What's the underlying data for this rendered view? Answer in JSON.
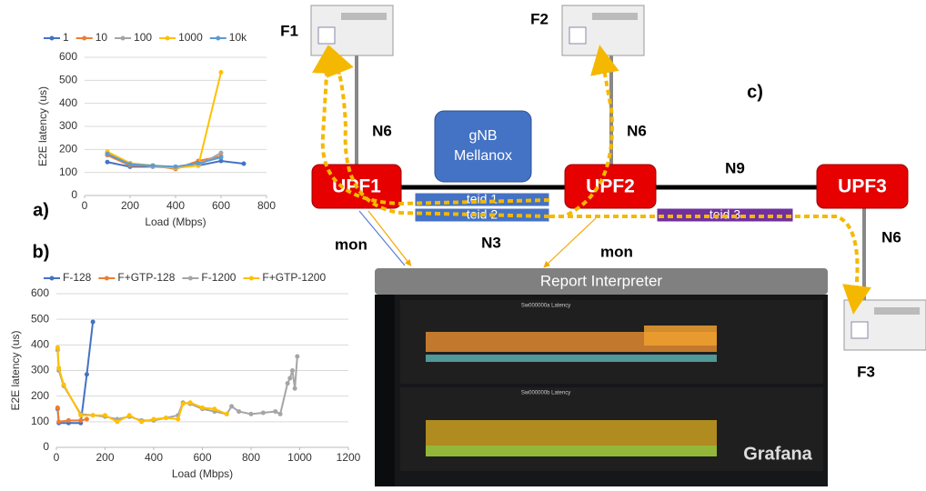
{
  "chart_data": [
    {
      "type": "line",
      "label": "a)",
      "xlabel": "Load (Mbps)",
      "ylabel": "E2E latency (us)",
      "xlim": [
        0,
        800
      ],
      "xticks": [
        0,
        200,
        400,
        600,
        800
      ],
      "ylim": [
        0,
        600
      ],
      "yticks": [
        0,
        100,
        200,
        300,
        400,
        500,
        600
      ],
      "grid": true,
      "legend": "top",
      "series": [
        {
          "name": "1",
          "color": "#4472c4",
          "x": [
            100,
            200,
            300,
            400,
            500,
            600,
            700
          ],
          "values": [
            145,
            125,
            125,
            125,
            130,
            150,
            138
          ]
        },
        {
          "name": "10",
          "color": "#ed7d31",
          "x": [
            100,
            200,
            300,
            400,
            500,
            600
          ],
          "values": [
            175,
            130,
            130,
            115,
            150,
            170
          ]
        },
        {
          "name": "100",
          "color": "#a5a5a5",
          "x": [
            100,
            200,
            300,
            400,
            500,
            600
          ],
          "values": [
            185,
            140,
            125,
            120,
            130,
            185
          ]
        },
        {
          "name": "1000",
          "color": "#ffc000",
          "x": [
            100,
            200,
            300,
            400,
            500,
            600
          ],
          "values": [
            190,
            140,
            130,
            120,
            130,
            535
          ]
        },
        {
          "name": "10k",
          "color": "#5b9bd5",
          "x": [
            100,
            200,
            300,
            400,
            500,
            600
          ],
          "values": [
            180,
            135,
            130,
            125,
            140,
            165
          ]
        }
      ]
    },
    {
      "type": "line",
      "label": "b)",
      "xlabel": "Load (Mbps)",
      "ylabel": "E2E latency (us)",
      "xlim": [
        0,
        1200
      ],
      "xticks": [
        0,
        200,
        400,
        600,
        800,
        1000,
        1200
      ],
      "ylim": [
        0,
        600
      ],
      "yticks": [
        0,
        100,
        200,
        300,
        400,
        500,
        600
      ],
      "grid": true,
      "legend": "top",
      "series": [
        {
          "name": "F-128",
          "color": "#4472c4",
          "x": [
            5,
            10,
            50,
            100,
            125,
            150
          ],
          "values": [
            150,
            95,
            95,
            95,
            285,
            490
          ]
        },
        {
          "name": "F+GTP-128",
          "color": "#ed7d31",
          "x": [
            5,
            10,
            50,
            100,
            125
          ],
          "values": [
            155,
            100,
            105,
            105,
            110
          ]
        },
        {
          "name": "F-1200",
          "color": "#a5a5a5",
          "x": [
            5,
            10,
            30,
            100,
            150,
            200,
            250,
            300,
            350,
            400,
            450,
            500,
            520,
            550,
            600,
            650,
            700,
            720,
            750,
            800,
            850,
            900,
            920,
            950,
            960,
            970,
            980,
            990
          ],
          "values": [
            380,
            300,
            240,
            130,
            125,
            120,
            110,
            120,
            105,
            105,
            115,
            125,
            175,
            170,
            150,
            140,
            130,
            160,
            140,
            130,
            135,
            140,
            130,
            250,
            270,
            300,
            230,
            355
          ]
        },
        {
          "name": "F+GTP-1200",
          "color": "#ffc000",
          "x": [
            5,
            10,
            30,
            100,
            150,
            200,
            250,
            300,
            350,
            400,
            450,
            500,
            520,
            550,
            600,
            650,
            700
          ],
          "values": [
            390,
            310,
            245,
            125,
            125,
            125,
            100,
            125,
            100,
            110,
            115,
            110,
            170,
            175,
            155,
            150,
            130
          ]
        }
      ]
    }
  ],
  "diagram": {
    "label": "c)",
    "servers": [
      "F1",
      "F2",
      "F3"
    ],
    "links": [
      "N6",
      "N6",
      "N6",
      "N9",
      "N3"
    ],
    "gnb": {
      "title": "gNB",
      "subtitle": "Mellanox"
    },
    "upfs": [
      "UPF1",
      "UPF2",
      "UPF3"
    ],
    "tunnels": [
      "teid 1",
      "teid 2",
      "teid 3"
    ],
    "monitors": [
      "mon",
      "mon"
    ],
    "interpreter": "Report Interpreter",
    "dashboard": {
      "name": "Grafana",
      "panels": [
        "Sw000000a Latency",
        "Sw000000b Latency"
      ]
    }
  }
}
